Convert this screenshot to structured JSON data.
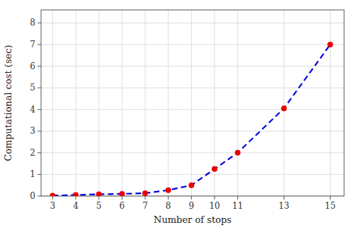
{
  "chart_data": {
    "type": "line",
    "xlabel": "Number of stops",
    "ylabel": "Computational cost (sec)",
    "x": [
      3,
      4,
      5,
      6,
      7,
      8,
      9,
      10,
      11,
      13,
      15
    ],
    "series": [
      {
        "color": "#0000dd",
        "marker": "circle",
        "line_style": "dashed",
        "colors": [
          "#ee0000",
          "#ee0000",
          "#ee0000",
          "#ee0000",
          "#ee0000",
          "#ee0000",
          "#ee0000",
          "#ee0000",
          "#ee0000",
          "#ee0000",
          "#ee0000"
        ],
        "values": [
          0.02,
          0.05,
          0.08,
          0.1,
          0.13,
          0.27,
          0.5,
          1.25,
          2.0,
          4.05,
          7.0
        ]
      }
    ],
    "xlim": [
      2.5,
      15.6
    ],
    "ylim": [
      0.0,
      8.6
    ],
    "xticks": [
      3,
      4,
      5,
      6,
      7,
      8,
      9,
      10,
      11,
      13,
      15
    ],
    "yticks": [
      0,
      1,
      2,
      3,
      4,
      5,
      6,
      7,
      8
    ],
    "grid": true
  }
}
